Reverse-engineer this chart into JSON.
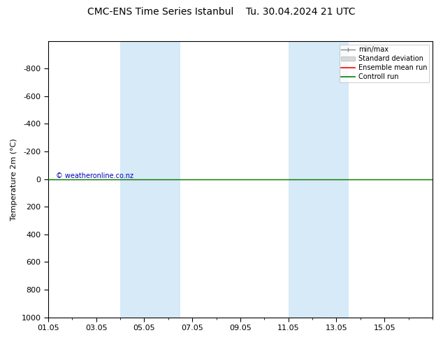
{
  "title": "CMC-ENS Time Series Istanbul",
  "title2": "Tu. 30.04.2024 21 UTC",
  "ylabel": "Temperature 2m (°C)",
  "ylim_bottom": -1000,
  "ylim_top": 1000,
  "yticks": [
    -800,
    -600,
    -400,
    -200,
    0,
    200,
    400,
    600,
    800,
    1000
  ],
  "xtick_labels": [
    "01.05",
    "03.05",
    "05.05",
    "07.05",
    "09.05",
    "11.05",
    "13.05",
    "15.05"
  ],
  "xtick_positions": [
    0,
    2,
    4,
    6,
    8,
    10,
    12,
    14
  ],
  "xlim": [
    0,
    16
  ],
  "shaded_bands": [
    {
      "x_start": 3.0,
      "x_end": 5.5
    },
    {
      "x_start": 10.0,
      "x_end": 12.5
    }
  ],
  "shade_color": "#d6eaf8",
  "control_run_y": 0,
  "control_run_color": "#008000",
  "ensemble_mean_color": "#ff0000",
  "watermark": "© weatheronline.co.nz",
  "watermark_color": "#0000bb",
  "background_color": "#ffffff",
  "fig_width": 6.34,
  "fig_height": 4.9,
  "dpi": 100,
  "legend_fontsize": 7,
  "axis_fontsize": 8,
  "title_fontsize": 10
}
